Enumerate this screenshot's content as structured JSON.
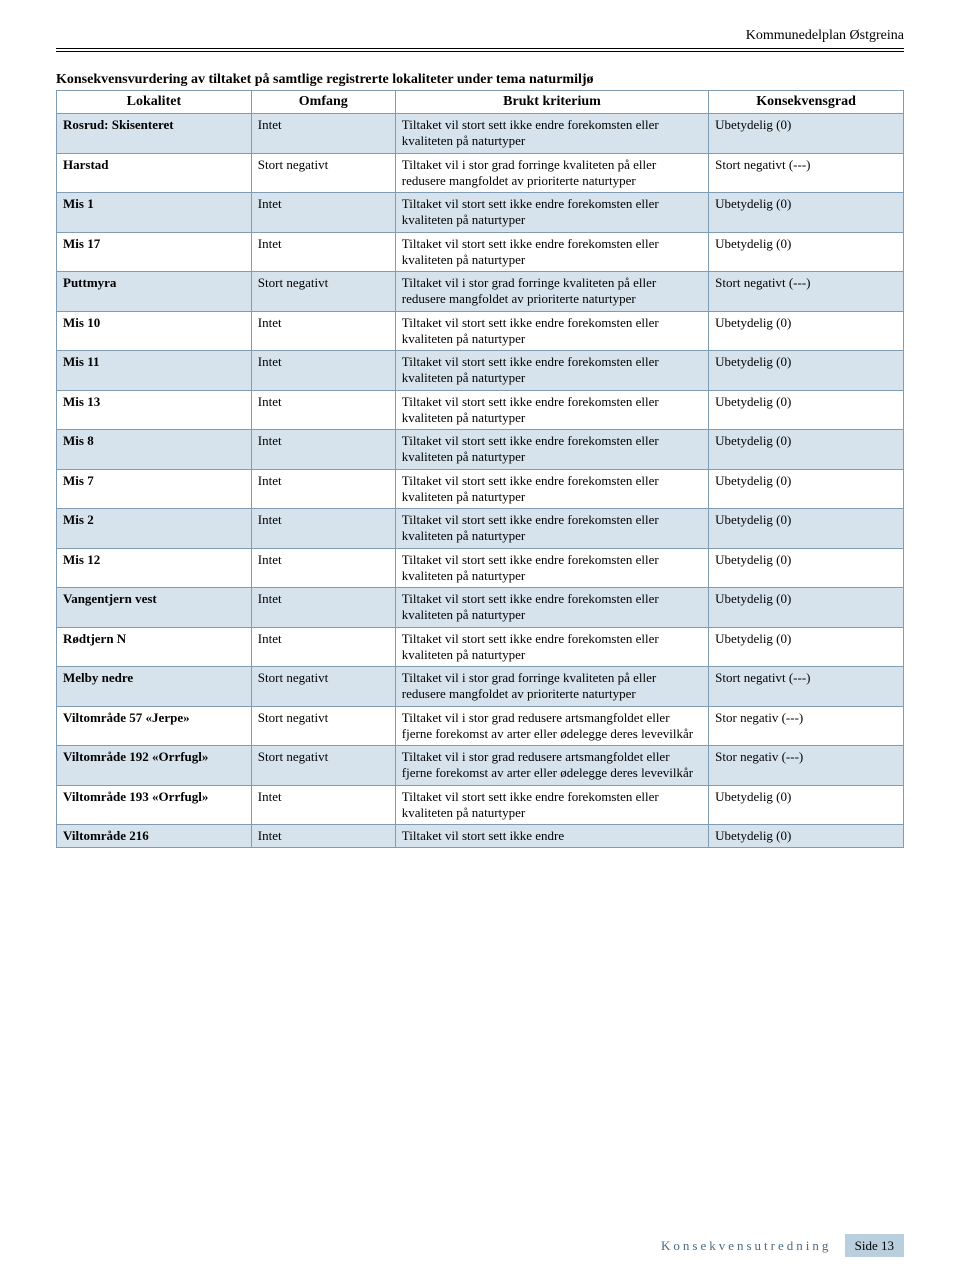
{
  "header": {
    "doc_title": "Kommunedelplan Østgreina"
  },
  "table_title": "Konsekvensvurdering av tiltaket på samtlige registrerte lokaliteter under tema naturmiljø",
  "columns": [
    "Lokalitet",
    "Omfang",
    "Brukt kriterium",
    "Konsekvensgrad"
  ],
  "criteria": {
    "ikke_endre": "Tiltaket vil stort sett ikke endre forekomsten eller kvaliteten på naturtyper",
    "forringe": "Tiltaket vil i stor grad forringe kvaliteten på eller redusere mangfoldet av prioriterte naturtyper",
    "redusere_art": "Tiltaket vil i stor grad redusere artsmangfoldet eller fjerne forekomst av arter eller ødelegge deres levevilkår",
    "ikke_endre_short": "Tiltaket vil stort sett ikke endre"
  },
  "grades": {
    "ubetydelig": "Ubetydelig (0)",
    "stort_neg": "Stort negativt (---)",
    "stor_neg": "Stor negativ (---)"
  },
  "omfang": {
    "intet": "Intet",
    "stort_negativt": "Stort negativt"
  },
  "rows": [
    {
      "lok": "Rosrud: Skisenteret",
      "omf": "intet",
      "crit": "ikke_endre",
      "grade": "ubetydelig",
      "band": true
    },
    {
      "lok": "Harstad",
      "omf": "stort_negativt",
      "crit": "forringe",
      "grade": "stort_neg",
      "band": false
    },
    {
      "lok": "Mis 1",
      "omf": "intet",
      "crit": "ikke_endre",
      "grade": "ubetydelig",
      "band": true
    },
    {
      "lok": "Mis 17",
      "omf": "intet",
      "crit": "ikke_endre",
      "grade": "ubetydelig",
      "band": false
    },
    {
      "lok": "Puttmyra",
      "omf": "stort_negativt",
      "crit": "forringe",
      "grade": "stort_neg",
      "band": true
    },
    {
      "lok": "Mis 10",
      "omf": "intet",
      "crit": "ikke_endre",
      "grade": "ubetydelig",
      "band": false
    },
    {
      "lok": "Mis 11",
      "omf": "intet",
      "crit": "ikke_endre",
      "grade": "ubetydelig",
      "band": true
    },
    {
      "lok": "Mis 13",
      "omf": "intet",
      "crit": "ikke_endre",
      "grade": "ubetydelig",
      "band": false
    },
    {
      "lok": "Mis 8",
      "omf": "intet",
      "crit": "ikke_endre",
      "grade": "ubetydelig",
      "band": true
    },
    {
      "lok": "Mis 7",
      "omf": "intet",
      "crit": "ikke_endre",
      "grade": "ubetydelig",
      "band": false
    },
    {
      "lok": "Mis 2",
      "omf": "intet",
      "crit": "ikke_endre",
      "grade": "ubetydelig",
      "band": true
    },
    {
      "lok": "Mis 12",
      "omf": "intet",
      "crit": "ikke_endre",
      "grade": "ubetydelig",
      "band": false
    },
    {
      "lok": "Vangentjern vest",
      "omf": "intet",
      "crit": "ikke_endre",
      "grade": "ubetydelig",
      "band": true
    },
    {
      "lok": "Rødtjern N",
      "omf": "intet",
      "crit": "ikke_endre",
      "grade": "ubetydelig",
      "band": false
    },
    {
      "lok": "Melby nedre",
      "omf": "stort_negativt",
      "crit": "forringe",
      "grade": "stort_neg",
      "band": true
    },
    {
      "lok": "Viltområde 57 «Jerpe»",
      "omf": "stort_negativt",
      "crit": "redusere_art",
      "grade": "stor_neg",
      "band": false
    },
    {
      "lok": "Viltområde 192 «Orrfugl»",
      "omf": "stort_negativt",
      "crit": "redusere_art",
      "grade": "stor_neg",
      "band": true
    },
    {
      "lok": "Viltområde 193 «Orrfugl»",
      "omf": "intet",
      "crit": "ikke_endre",
      "grade": "ubetydelig",
      "band": false
    },
    {
      "lok": "Viltområde 216",
      "omf": "intet",
      "crit": "ikke_endre_short",
      "grade": "ubetydelig",
      "band": true
    }
  ],
  "footer": {
    "title": "Konsekvensutredning",
    "page": "Side 13"
  }
}
